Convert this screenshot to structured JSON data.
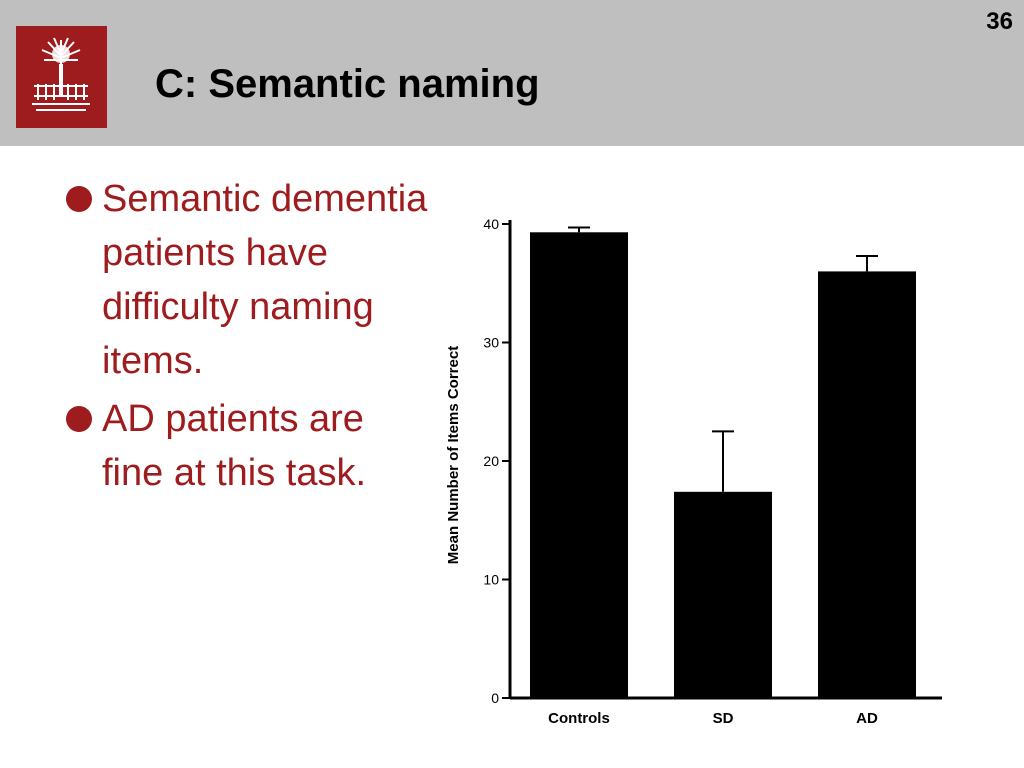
{
  "slide": {
    "number": "36",
    "title": "C: Semantic naming",
    "logo_icon": "university-seal-icon",
    "accent_color": "#9e1b1e",
    "header_color": "#bfbfbf"
  },
  "bullets": [
    "Semantic dementia patients have difficulty naming items.",
    "AD patients are fine at this task."
  ],
  "chart_data": {
    "type": "bar",
    "categories": [
      "Controls",
      "SD",
      "AD"
    ],
    "values": [
      39.3,
      17.4,
      36.0
    ],
    "error_upper": [
      39.7,
      22.5,
      37.3
    ],
    "ylabel": "Mean Number of Items Correct",
    "xlabel": "",
    "ylim": [
      0,
      40
    ],
    "yticks": [
      0,
      10,
      20,
      30,
      40
    ],
    "grid": false,
    "bar_color": "#000000"
  }
}
